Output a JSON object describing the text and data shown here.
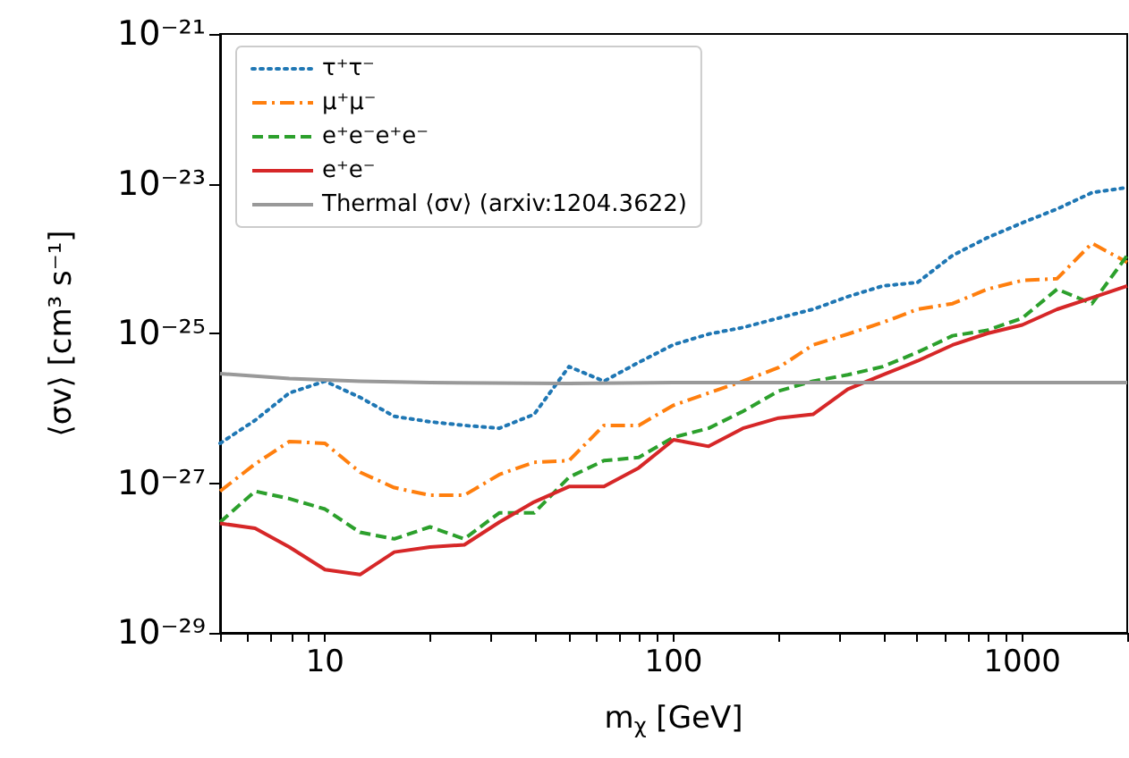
{
  "chart_data": {
    "type": "line",
    "xlabel": "m$_{χ}$ [GeV]",
    "ylabel": "⟨σv⟩ [cm³ s⁻¹]",
    "log": "xy",
    "legend": "top left",
    "x": [
      5,
      6.3,
      7.9,
      10,
      12.6,
      15.8,
      20,
      25.1,
      31.6,
      39.8,
      50.1,
      63.1,
      79.4,
      100,
      126,
      158,
      200,
      251,
      316,
      398,
      501,
      631,
      794,
      1000,
      1259,
      1585,
      2000
    ],
    "xlim": [
      5,
      2000
    ],
    "ylim": [
      1e-29,
      1e-21
    ],
    "xticks": [
      {
        "value": 5,
        "label": null
      },
      {
        "value": 6,
        "label": null
      },
      {
        "value": 7,
        "label": null
      },
      {
        "value": 8,
        "label": null
      },
      {
        "value": 9,
        "label": null
      },
      10,
      {
        "value": 20,
        "label": null
      },
      {
        "value": 30,
        "label": null
      },
      {
        "value": 40,
        "label": null
      },
      {
        "value": 50,
        "label": null
      },
      {
        "value": 60,
        "label": null
      },
      {
        "value": 70,
        "label": null
      },
      {
        "value": 80,
        "label": null
      },
      {
        "value": 90,
        "label": null
      },
      100,
      {
        "value": 200,
        "label": null
      },
      {
        "value": 300,
        "label": null
      },
      {
        "value": 400,
        "label": null
      },
      {
        "value": 500,
        "label": null
      },
      {
        "value": 600,
        "label": null
      },
      {
        "value": 700,
        "label": null
      },
      {
        "value": 800,
        "label": null
      },
      {
        "value": 900,
        "label": null
      },
      1000,
      {
        "value": 2000,
        "label": null
      }
    ],
    "yticks": [
      {
        "value": 1e-29,
        "label": "10⁻²⁹"
      },
      {
        "value": 1e-27,
        "label": "10⁻²⁷"
      },
      {
        "value": 1e-25,
        "label": "10⁻²⁵"
      },
      {
        "value": 1e-23,
        "label": "10⁻²³"
      },
      {
        "value": 1e-21,
        "label": "10⁻²¹"
      }
    ],
    "series": [
      {
        "name": "τ⁺τ⁻",
        "color": "#1f77b4",
        "line_style": "dotted",
        "values": [
          3.4e-27,
          6.9e-27,
          1.6e-26,
          2.3e-26,
          1.4e-26,
          7.8e-27,
          6.6e-27,
          5.9e-27,
          5.4e-27,
          8.3e-27,
          3.6e-26,
          2.3e-26,
          4.1e-26,
          7.1e-26,
          9.8e-26,
          1.2e-25,
          1.6e-25,
          2.1e-25,
          3.1e-25,
          4.3e-25,
          4.8e-25,
          1.1e-24,
          1.9e-24,
          3e-24,
          4.6e-24,
          7.6e-24,
          8.9e-24
        ]
      },
      {
        "name": "μ⁺μ⁻",
        "color": "#ff7f0e",
        "line_style": "dashdot",
        "values": [
          7.8e-28,
          1.8e-27,
          3.6e-27,
          3.4e-27,
          1.4e-27,
          8.7e-28,
          6.9e-28,
          6.9e-28,
          1.3e-27,
          1.9e-27,
          2e-27,
          5.9e-27,
          5.9e-27,
          1.1e-26,
          1.6e-26,
          2.3e-26,
          3.5e-26,
          7e-26,
          9.8e-26,
          1.4e-25,
          2.1e-25,
          2.5e-25,
          3.9e-25,
          5.1e-25,
          5.4e-25,
          1.6e-24,
          8.9e-25
        ]
      },
      {
        "name": "e⁺e⁻e⁺e⁻",
        "color": "#2ca02c",
        "line_style": "dashed",
        "values": [
          3e-28,
          7.8e-28,
          6.2e-28,
          4.5e-28,
          2.2e-28,
          1.8e-28,
          2.6e-28,
          1.8e-28,
          4e-28,
          4e-28,
          1.2e-27,
          2e-27,
          2.2e-27,
          4.1e-27,
          5.4e-27,
          9.1e-27,
          1.7e-26,
          2.3e-26,
          2.8e-26,
          3.6e-26,
          5.6e-26,
          9.3e-26,
          1.1e-25,
          1.6e-25,
          3.9e-25,
          2.5e-25,
          1.1e-24
        ]
      },
      {
        "name": "e⁺e⁻",
        "color": "#d62728",
        "line_style": "solid",
        "values": [
          2.9e-28,
          2.5e-28,
          1.4e-28,
          7e-29,
          6e-29,
          1.2e-28,
          1.4e-28,
          1.5e-28,
          3e-28,
          5.6e-28,
          9e-28,
          9e-28,
          1.6e-27,
          3.8e-27,
          3.1e-27,
          5.4e-27,
          7.4e-27,
          8.3e-27,
          1.8e-26,
          2.8e-26,
          4.3e-26,
          7e-26,
          1e-25,
          1.3e-25,
          2.1e-25,
          3e-25,
          4.3e-25
        ]
      },
      {
        "name": "Thermal ⟨σv⟩ (arxiv:1204.3622)",
        "color": "#999999",
        "line_style": "solid",
        "x": [
          5,
          7.9,
          12.6,
          20,
          50,
          100,
          2000
        ],
        "values": [
          2.9e-26,
          2.5e-26,
          2.3e-26,
          2.2e-26,
          2.15e-26,
          2.2e-26,
          2.2e-26
        ]
      }
    ]
  }
}
